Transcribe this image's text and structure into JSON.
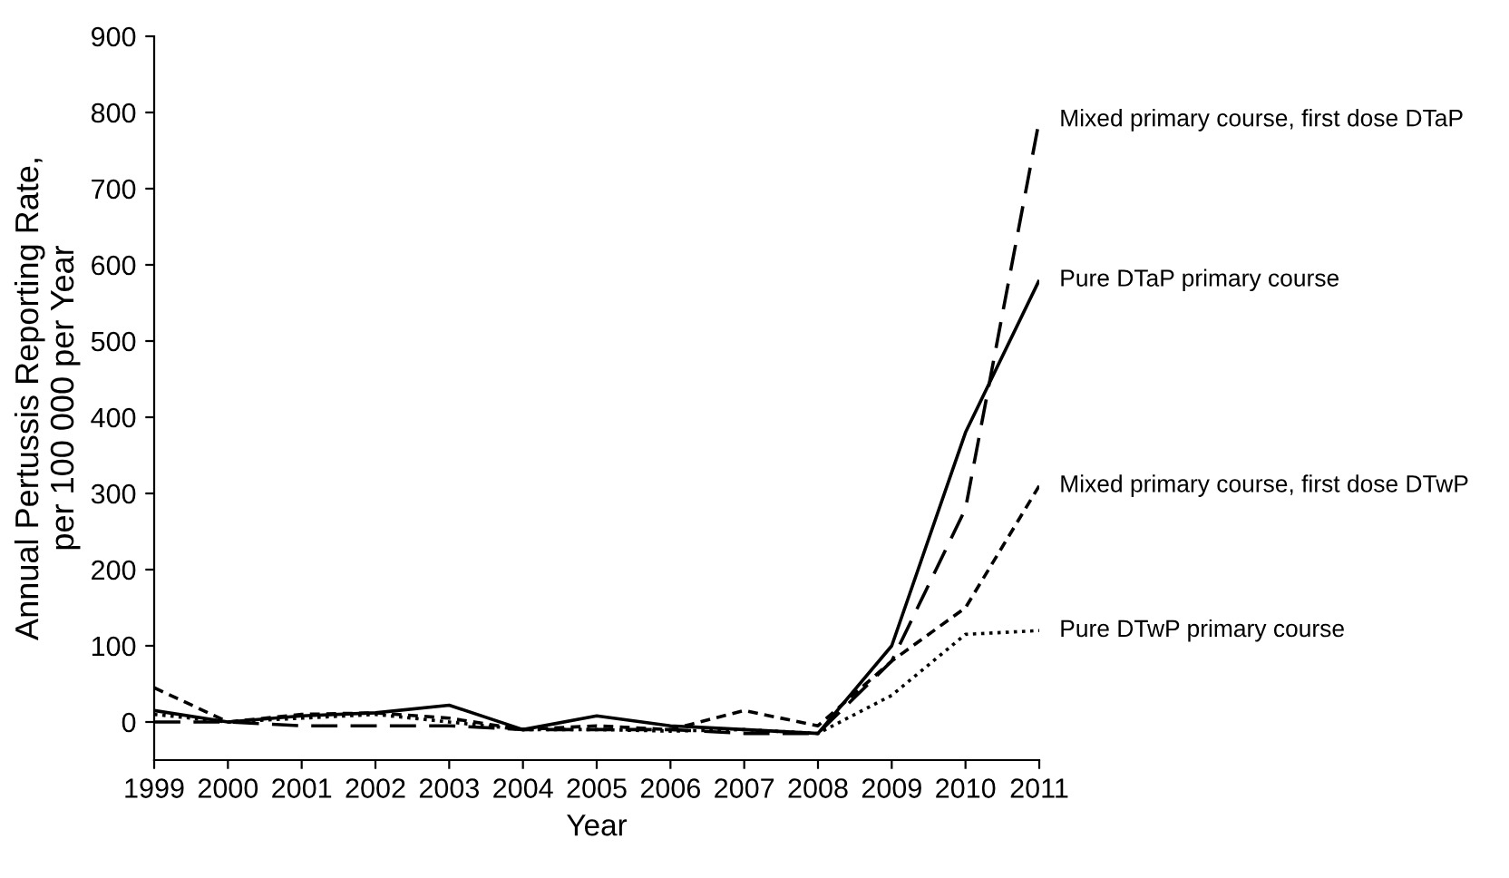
{
  "chart_data": {
    "type": "line",
    "xlabel": "Year",
    "ylabel": "Annual Pertussis Reporting Rate,\nper 100 000 per Year",
    "categories": [
      "1999",
      "2000",
      "2001",
      "2002",
      "2003",
      "2004",
      "2005",
      "2006",
      "2007",
      "2008",
      "2009",
      "2010",
      "2011"
    ],
    "series": [
      {
        "name": "Mixed primary course, first dose DTaP",
        "color": "#000000",
        "line_style": "dashed",
        "values": [
          0,
          0,
          -5,
          -5,
          -5,
          -10,
          -10,
          -10,
          -15,
          -15,
          80,
          280,
          790
        ]
      },
      {
        "name": "Pure DTaP primary course",
        "color": "#000000",
        "line_style": "solid",
        "values": [
          15,
          0,
          8,
          12,
          22,
          -10,
          8,
          -5,
          -10,
          -15,
          100,
          380,
          580
        ]
      },
      {
        "name": "Mixed primary course, first dose DTwP",
        "color": "#000000",
        "line_style": "dashdot",
        "values": [
          45,
          0,
          10,
          12,
          5,
          -10,
          -5,
          -10,
          15,
          -5,
          80,
          150,
          310
        ]
      },
      {
        "name": "Pure DTwP primary course",
        "color": "#000000",
        "line_style": "dotted",
        "values": [
          10,
          0,
          5,
          10,
          0,
          -10,
          -10,
          -12,
          -10,
          -15,
          35,
          115,
          120
        ]
      }
    ],
    "ylim": [
      -50,
      900
    ],
    "yticks": [
      0,
      100,
      200,
      300,
      400,
      500,
      600,
      700,
      800,
      900
    ],
    "grid": false,
    "legend": false,
    "marker": "none"
  }
}
